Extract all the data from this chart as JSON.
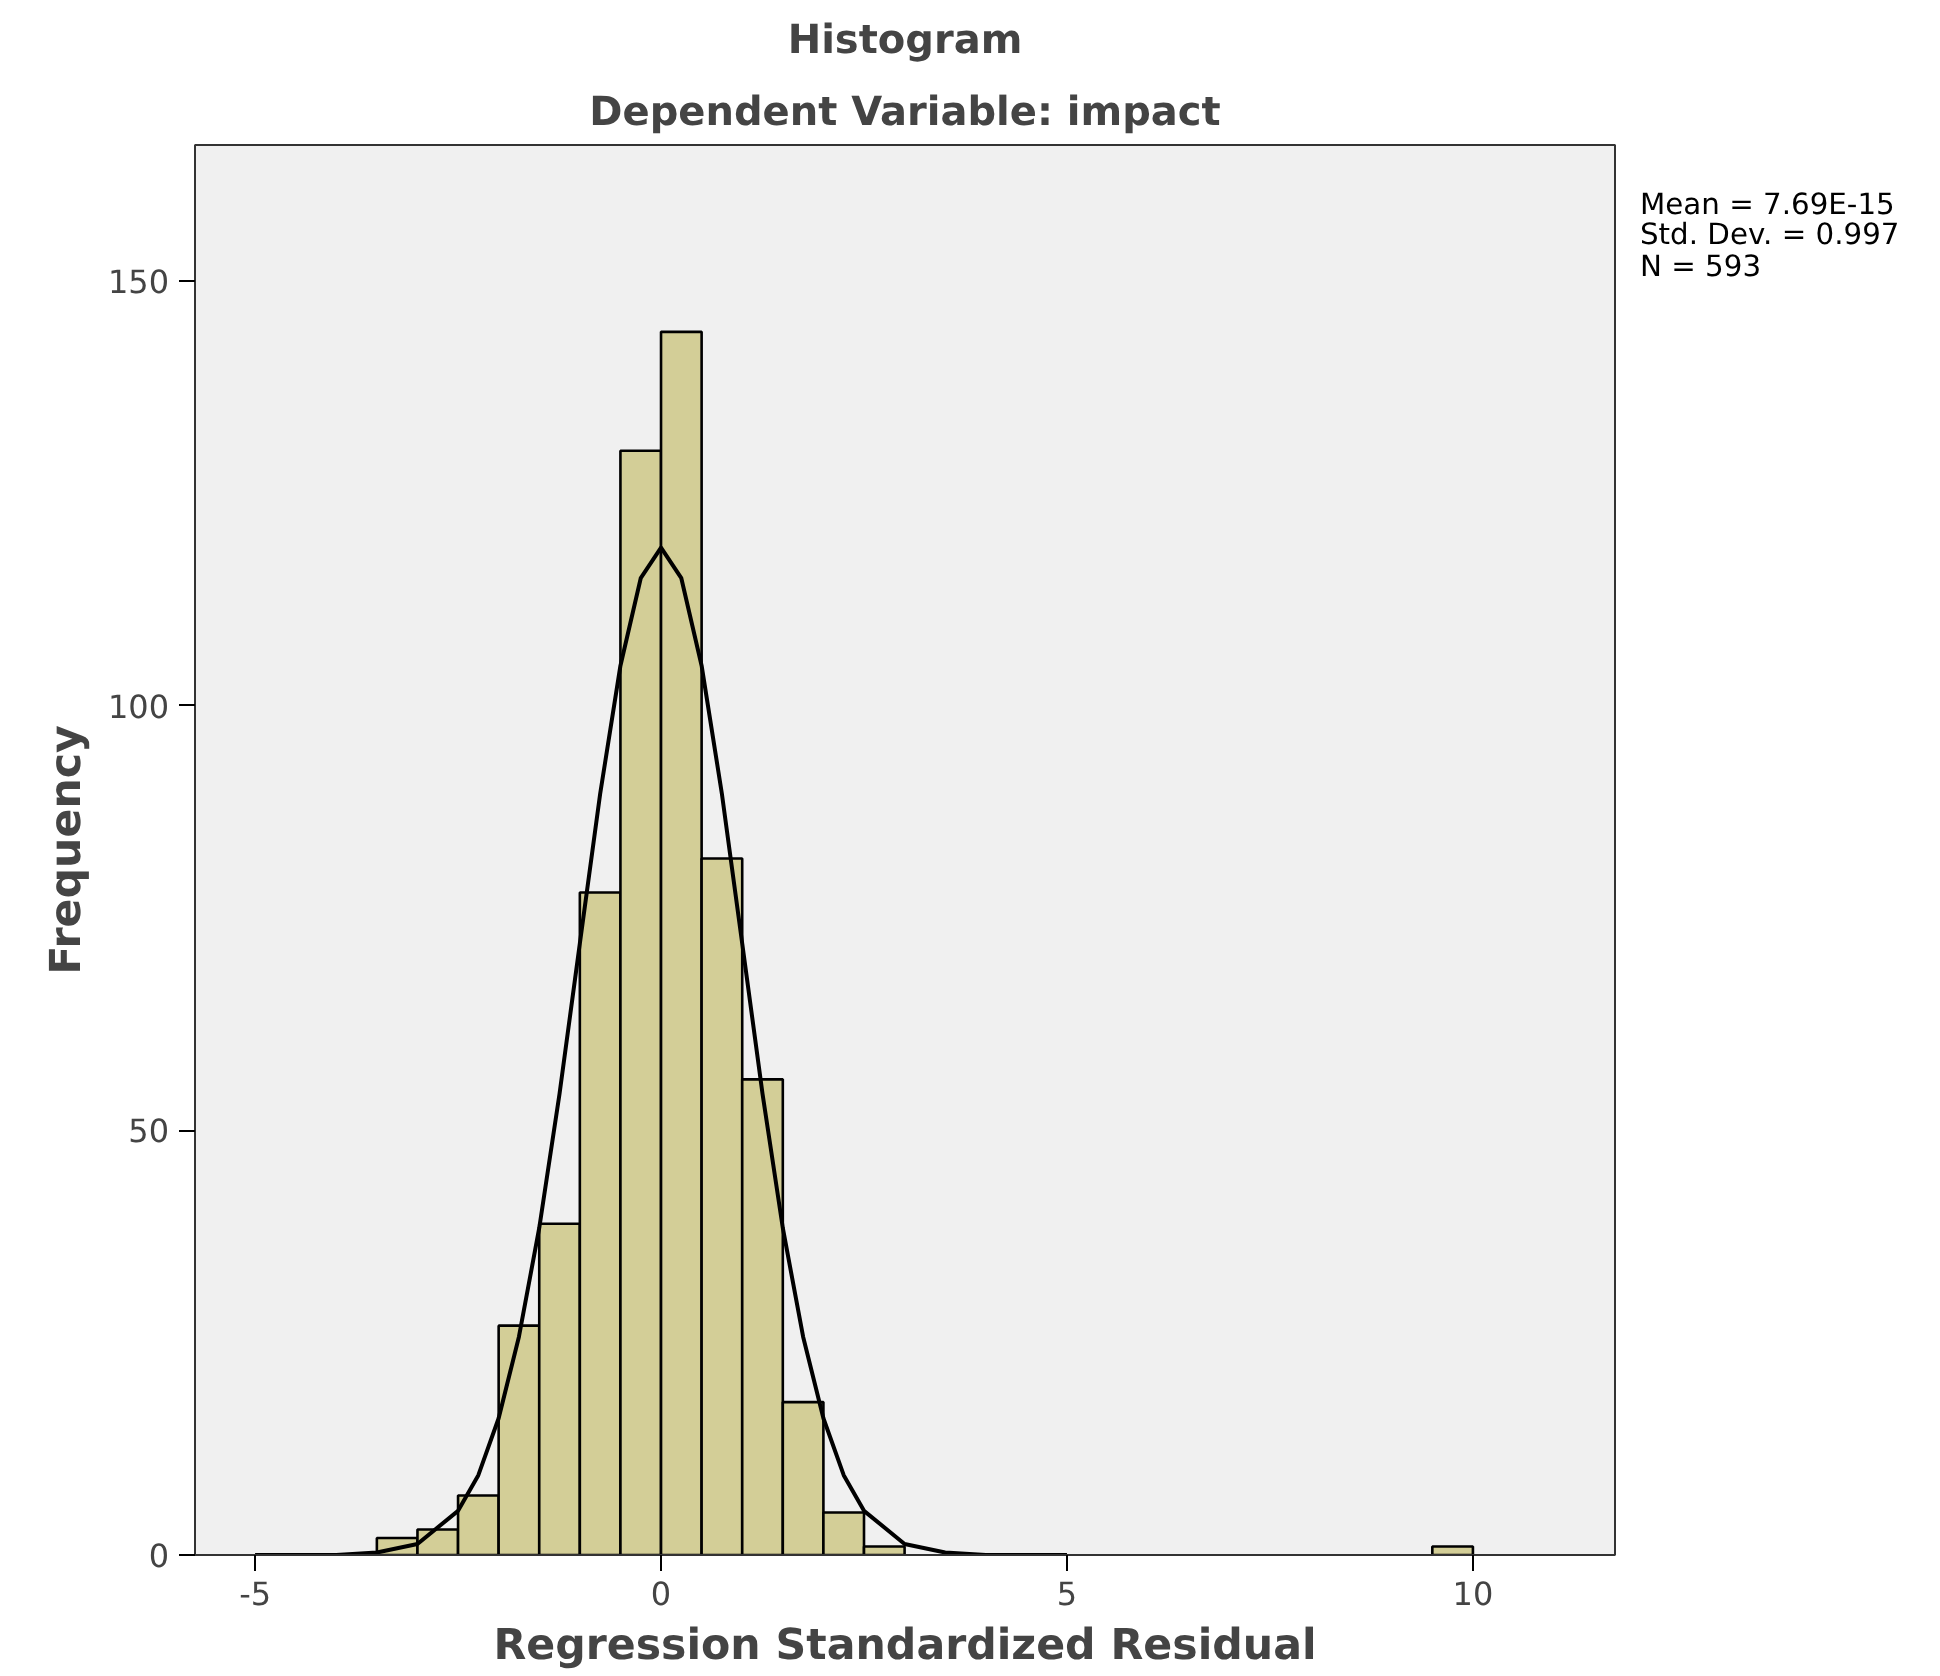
{
  "chart_data": {
    "type": "histogram",
    "title": "Histogram",
    "subtitle": "Dependent Variable: impact",
    "xlabel": "Regression Standardized Residual",
    "ylabel": "Frequency",
    "bins": [
      -3.5,
      -3.0,
      -2.5,
      -2.0,
      -1.5,
      -1.0,
      -0.5,
      0.0,
      0.5,
      1.0,
      1.5,
      2.0,
      2.5,
      3.0,
      3.5,
      4.0,
      4.5,
      5.0,
      5.5,
      6.0,
      6.5,
      7.0,
      7.5,
      8.0,
      8.5,
      9.0,
      9.5,
      10.0
    ],
    "values": [
      2,
      3,
      7,
      27,
      39,
      78,
      130,
      144,
      82,
      56,
      18,
      5,
      1,
      0,
      0,
      0,
      0,
      0,
      0,
      0,
      0,
      0,
      0,
      0,
      0,
      0,
      1
    ],
    "color": "#d3ce97",
    "series": [
      {
        "type": "line",
        "color": "#000000",
        "x": [
          -5,
          -4,
          -3.5,
          -3,
          -2.5,
          -2.25,
          -2,
          -1.75,
          -1.5,
          -1.25,
          -1,
          -0.75,
          -0.5,
          -0.25,
          0,
          0.25,
          0.5,
          0.75,
          1,
          1.25,
          1.5,
          1.75,
          2,
          2.25,
          2.5,
          3,
          3.5,
          4,
          5
        ],
        "values": [
          0,
          0,
          0.3,
          1.3,
          5.2,
          9.4,
          16.1,
          25.7,
          38.5,
          54.3,
          72.0,
          89.6,
          104.7,
          115.0,
          118.6,
          115.0,
          104.7,
          89.6,
          72.0,
          54.3,
          38.5,
          25.7,
          16.1,
          9.4,
          5.2,
          1.3,
          0.3,
          0,
          0
        ]
      }
    ],
    "xlim": [
      -5.74,
      11.75
    ],
    "ylim": [
      0,
      166
    ],
    "xticks": [
      -5,
      0,
      5,
      10
    ],
    "yticks": [
      0,
      50,
      100,
      150
    ],
    "grid": false,
    "annotations": [
      "Mean = 7.69E-15",
      "Std. Dev. = 0.997",
      "N = 593"
    ]
  }
}
